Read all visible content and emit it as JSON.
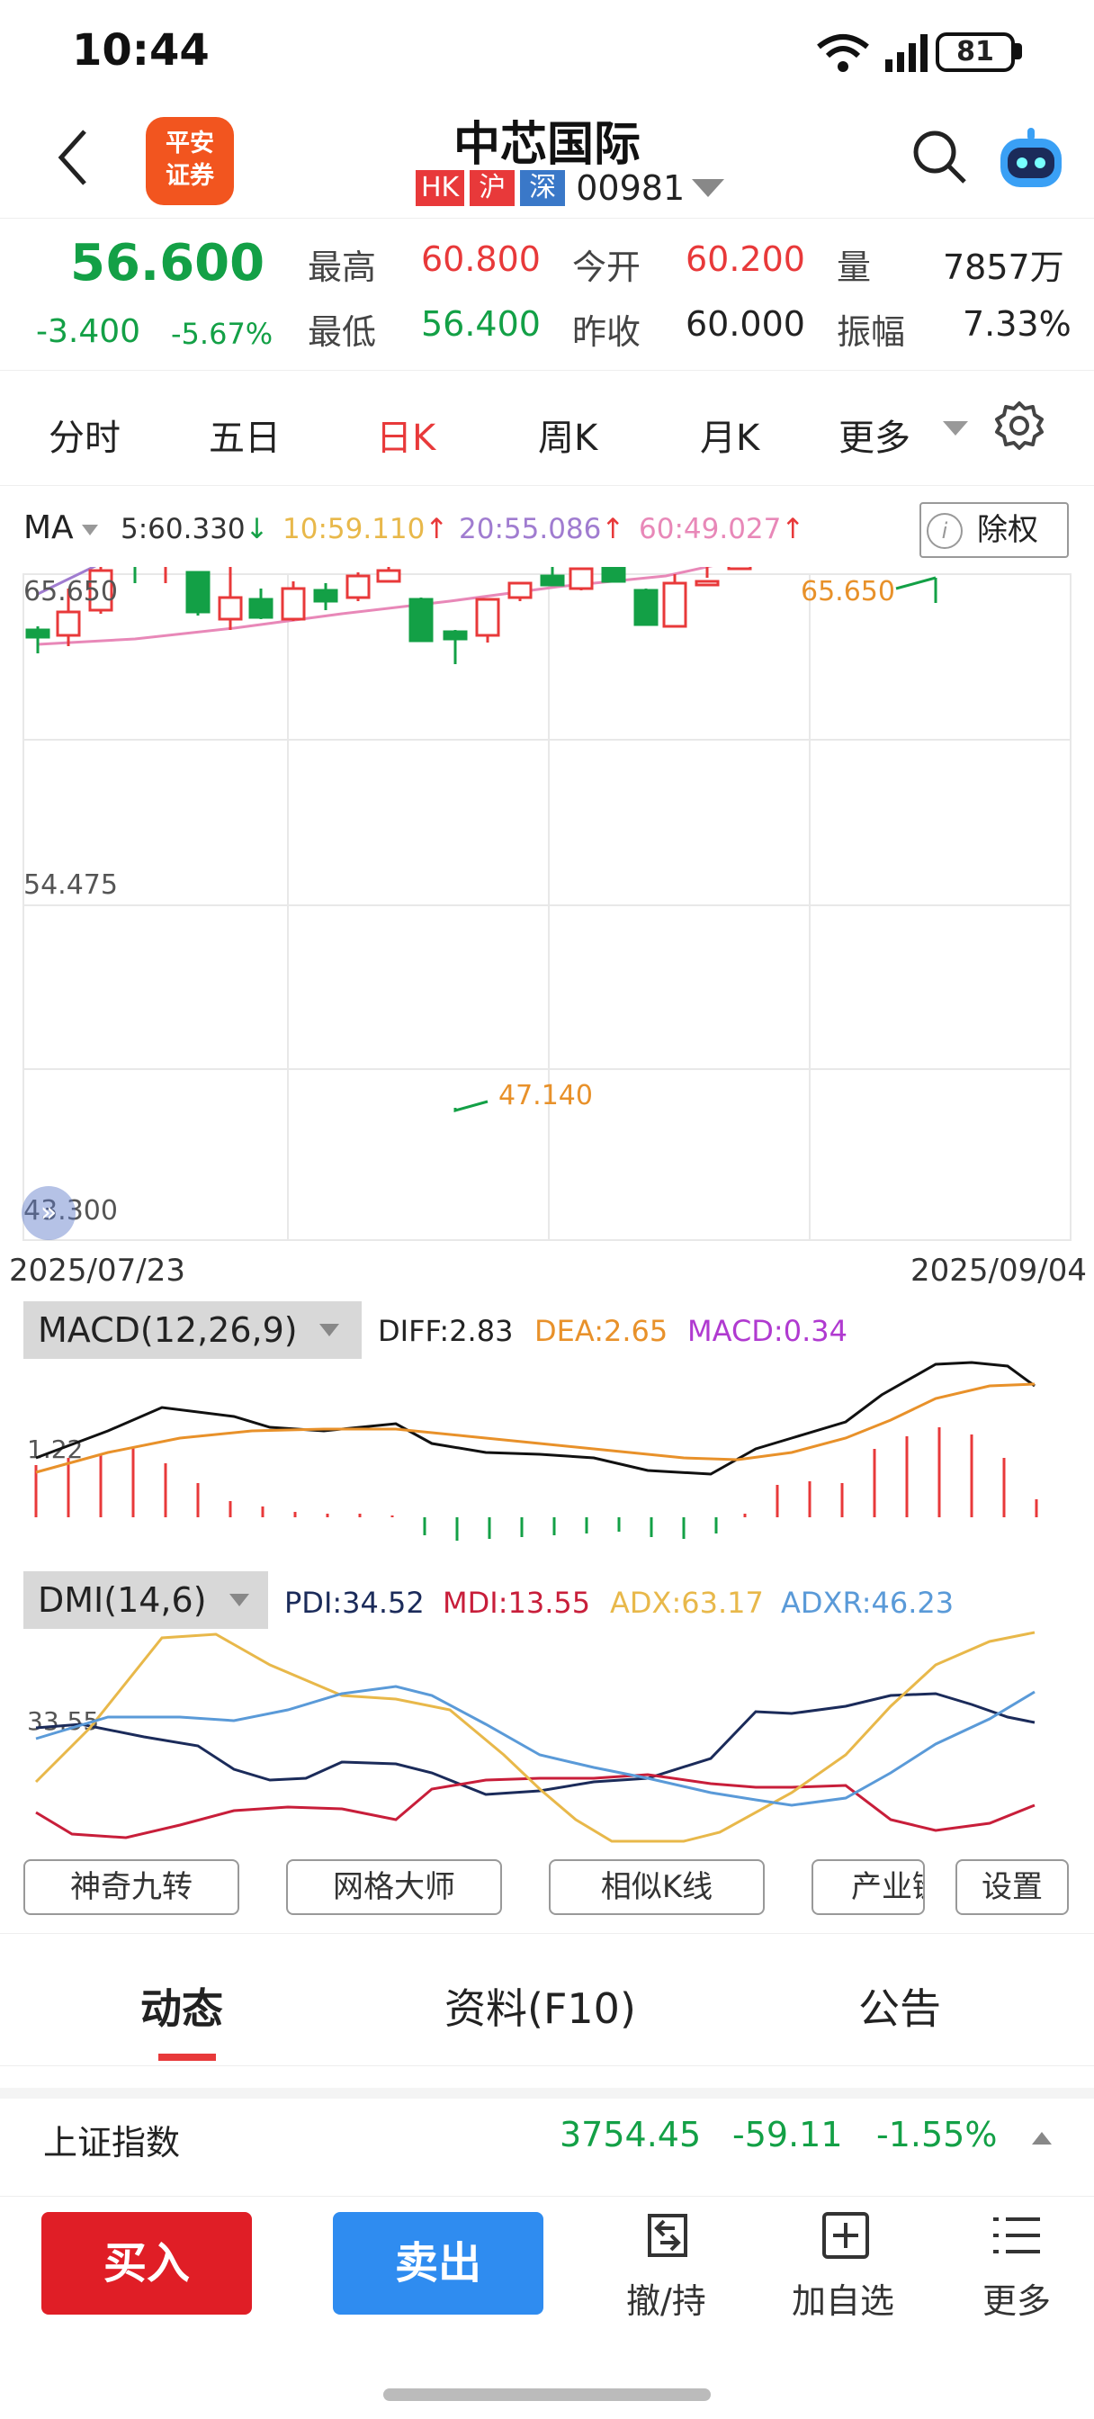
{
  "status_bar": {
    "time": "10:44",
    "battery": "81"
  },
  "header": {
    "logo_text_1": "平安",
    "logo_text_2": "证券",
    "title": "中芯国际",
    "markets": [
      {
        "label": "HK",
        "color": "#e8393a"
      },
      {
        "label": "沪",
        "color": "#e8393a"
      },
      {
        "label": "深",
        "color": "#3a78c8"
      }
    ],
    "code": "00981",
    "icons": [
      "back-icon",
      "search-icon",
      "robot-assistant-icon"
    ]
  },
  "quote": {
    "price": "56.600",
    "change": "-3.400",
    "change_pct": "-5.67%",
    "high_label": "最高",
    "high": "60.800",
    "open_label": "今开",
    "open": "60.200",
    "volume_label": "量",
    "volume": "7857万",
    "low_label": "最低",
    "low": "56.400",
    "prev_close_label": "昨收",
    "prev_close": "60.000",
    "amplitude_label": "振幅",
    "amplitude": "7.33%"
  },
  "period_tabs": [
    "分时",
    "五日",
    "日K",
    "周K",
    "月K",
    "更多"
  ],
  "active_period": "日K",
  "ma": {
    "label": "MA",
    "items": [
      {
        "text": "5:60.330",
        "arrow": "↓",
        "color": "#333333"
      },
      {
        "text": "10:59.110",
        "arrow": "↑",
        "color": "#e8b84a"
      },
      {
        "text": "20:55.086",
        "arrow": "↑",
        "color": "#a07cd0"
      },
      {
        "text": "60:49.027",
        "arrow": "↑",
        "color": "#e888b8"
      }
    ],
    "chuquan_label": "除权",
    "chuquan_icon": "i"
  },
  "kchart": {
    "price_max": "65.650",
    "price_mid": "54.475",
    "price_min": "43.300",
    "high_marker": "65.650",
    "low_marker": "47.140",
    "date_start": "2025/07/23",
    "date_end": "2025/09/04"
  },
  "macd": {
    "tag": "MACD(12,26,9)",
    "diff": "DIFF:2.83",
    "dea": "DEA:2.65",
    "macd": "MACD:0.34",
    "scale_label": "1.22"
  },
  "dmi": {
    "tag": "DMI(14,6)",
    "pdi": "PDI:34.52",
    "mdi": "MDI:13.55",
    "adx": "ADX:63.17",
    "adxr": "ADXR:46.23",
    "scale_label": "33.55"
  },
  "tools": [
    "神奇九转",
    "网格大师",
    "相似K线",
    "产业链",
    "设置"
  ],
  "bottom_tabs": [
    "动态",
    "资料(F10)",
    "公告"
  ],
  "index": {
    "name": "上证指数",
    "value": "3754.45",
    "change": "-59.11",
    "change_pct": "-1.55%"
  },
  "nav": {
    "buy": "买入",
    "sell": "卖出",
    "items": [
      {
        "label": "撤/持",
        "icon": "cancel-hold-icon"
      },
      {
        "label": "加自选",
        "icon": "add-watchlist-icon"
      },
      {
        "label": "更多",
        "icon": "more-menu-icon"
      }
    ]
  },
  "colors": {
    "up": "#e8393a",
    "down": "#13a046",
    "accent": "#e8393a",
    "sell": "#2f8cf0"
  }
}
